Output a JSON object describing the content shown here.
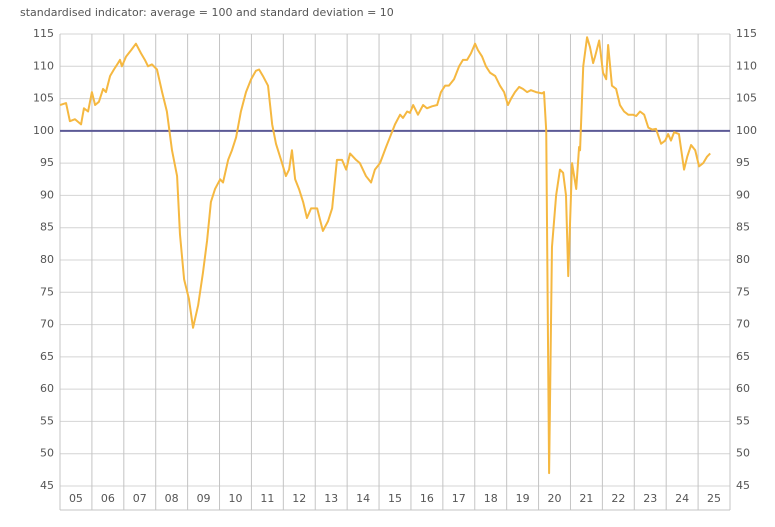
{
  "chart_data": {
    "type": "line",
    "title": "standardised indicator: average = 100 and standard deviation = 10",
    "x": [
      5.0,
      5.19,
      5.31,
      5.47,
      5.66,
      5.75,
      5.88,
      6.0,
      6.1,
      6.22,
      6.35,
      6.44,
      6.57,
      6.69,
      6.82,
      6.88,
      6.94,
      7.07,
      7.23,
      7.38,
      7.54,
      7.66,
      7.76,
      7.88,
      8.04,
      8.2,
      8.35,
      8.51,
      8.67,
      8.76,
      8.89,
      9.04,
      9.17,
      9.33,
      9.48,
      9.61,
      9.73,
      9.86,
      10.02,
      10.11,
      10.27,
      10.39,
      10.52,
      10.67,
      10.83,
      10.99,
      11.14,
      11.24,
      11.36,
      11.52,
      11.65,
      11.77,
      11.96,
      12.08,
      12.18,
      12.27,
      12.37,
      12.49,
      12.62,
      12.74,
      12.87,
      13.06,
      13.24,
      13.4,
      13.53,
      13.68,
      13.84,
      13.97,
      14.09,
      14.28,
      14.4,
      14.59,
      14.75,
      14.87,
      15.03,
      15.22,
      15.34,
      15.5,
      15.66,
      15.75,
      15.88,
      15.97,
      16.07,
      16.22,
      16.38,
      16.5,
      16.66,
      16.82,
      16.94,
      17.07,
      17.19,
      17.35,
      17.51,
      17.63,
      17.76,
      17.88,
      18.01,
      18.1,
      18.23,
      18.35,
      18.48,
      18.64,
      18.79,
      18.92,
      19.04,
      19.14,
      19.26,
      19.39,
      19.51,
      19.64,
      19.76,
      19.92,
      20.11,
      20.17,
      20.24,
      20.33,
      20.42,
      20.55,
      20.67,
      20.77,
      20.86,
      20.93,
      21.05,
      21.18,
      21.27,
      21.3,
      21.4,
      21.52,
      21.61,
      21.71,
      21.77,
      21.9,
      22.02,
      22.12,
      22.18,
      22.3,
      22.43,
      22.55,
      22.68,
      22.81,
      22.96,
      23.06,
      23.18,
      23.31,
      23.44,
      23.56,
      23.68,
      23.84,
      23.97,
      24.06,
      24.15,
      24.25,
      24.4,
      24.56,
      24.66,
      24.78,
      24.91,
      25.03,
      25.16,
      25.28,
      25.38
    ],
    "series": [
      {
        "color": "#f5b841",
        "values": [
          104,
          104.3,
          101.5,
          101.8,
          101,
          103.5,
          103,
          106,
          104,
          104.5,
          106.5,
          106,
          108.5,
          109.5,
          110.5,
          111,
          110,
          111.5,
          112.5,
          113.5,
          112,
          111,
          110,
          110.3,
          109.5,
          106,
          103,
          97,
          93,
          84,
          77,
          74,
          69.5,
          73,
          78,
          83,
          89,
          91,
          92.5,
          92,
          95.5,
          97,
          99,
          103,
          106,
          108,
          109.3,
          109.5,
          108.5,
          107,
          101,
          98,
          95,
          93,
          94,
          97,
          92.5,
          91,
          89,
          86.5,
          88,
          88,
          84.5,
          86,
          88,
          95.5,
          95.5,
          94,
          96.5,
          95.5,
          95,
          93,
          92,
          94,
          95,
          97.5,
          99,
          101,
          102.5,
          102,
          103,
          102.8,
          104,
          102.5,
          104,
          103.5,
          103.8,
          104,
          106,
          107,
          107,
          108,
          110,
          111,
          111,
          112,
          113.5,
          112.5,
          111.5,
          110,
          109,
          108.5,
          107,
          106,
          104,
          105,
          106,
          106.8,
          106.5,
          106,
          106.3,
          106,
          105.8,
          106,
          100,
          47,
          82,
          90,
          94,
          93.5,
          90,
          77.5,
          95,
          91,
          97.5,
          97,
          110,
          114.5,
          113,
          110.5,
          111.5,
          114,
          109,
          108,
          113.3,
          107,
          106.5,
          104,
          103,
          102.5,
          102.5,
          102.3,
          103,
          102.5,
          100.5,
          100.2,
          100.3,
          98,
          98.5,
          99.5,
          98.5,
          99.8,
          99.5,
          94,
          96,
          97.8,
          97,
          94.5,
          95,
          96,
          96.5
        ]
      }
    ],
    "reference_line": {
      "value": 100,
      "color": "#5c5a96"
    },
    "xlim": [
      5,
      26
    ],
    "xticks": [
      {
        "value": 5,
        "label": "05"
      },
      {
        "value": 6,
        "label": "06"
      },
      {
        "value": 7,
        "label": "07"
      },
      {
        "value": 8,
        "label": "08"
      },
      {
        "value": 9,
        "label": "09"
      },
      10,
      11,
      12,
      13,
      14,
      15,
      16,
      17,
      18,
      19,
      20,
      21,
      22,
      23,
      24,
      25
    ],
    "ylim": [
      45,
      115
    ],
    "yticks": [
      45,
      50,
      55,
      60,
      65,
      70,
      75,
      80,
      85,
      90,
      95,
      100,
      105,
      110,
      115
    ],
    "grid": true
  }
}
